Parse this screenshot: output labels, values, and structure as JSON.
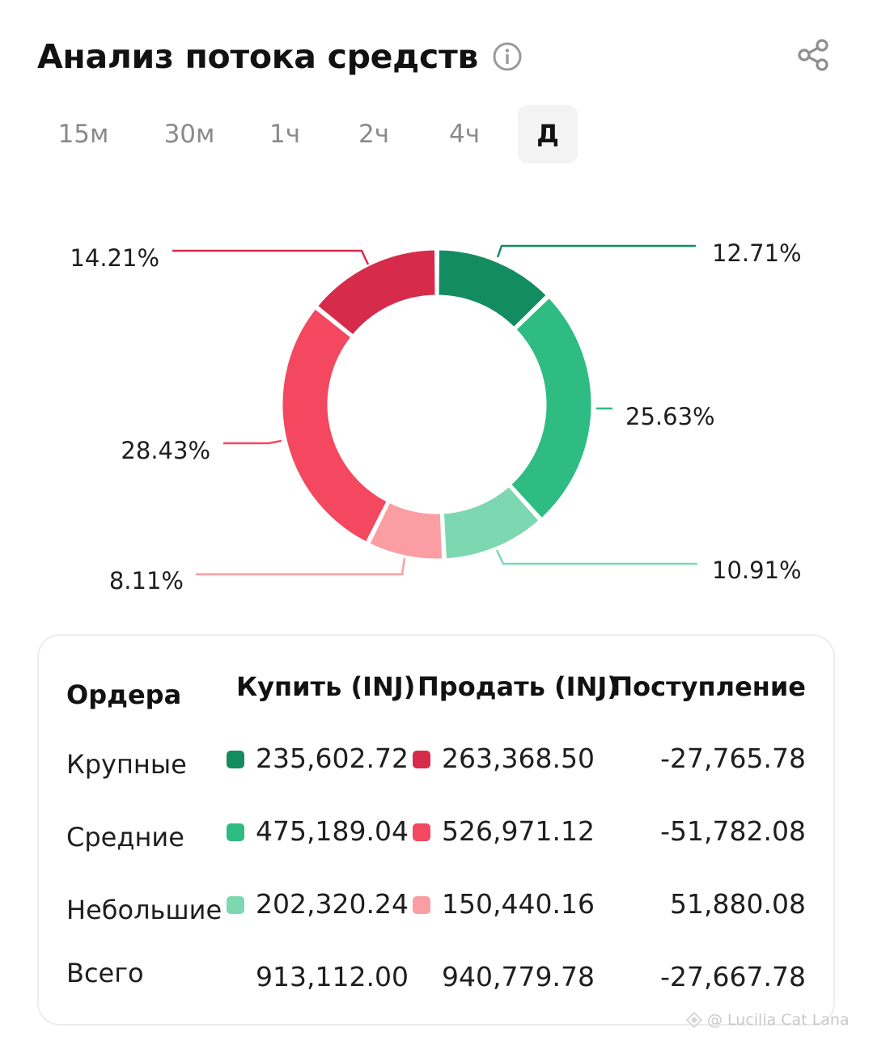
{
  "header": {
    "title": "Анализ потока средств",
    "info_icon": "info-icon",
    "share_icon": "share-icon"
  },
  "tabs": [
    {
      "label": "15м",
      "active": false
    },
    {
      "label": "30м",
      "active": false
    },
    {
      "label": "1ч",
      "active": false
    },
    {
      "label": "2ч",
      "active": false
    },
    {
      "label": "4ч",
      "active": false
    },
    {
      "label": "Д",
      "active": true
    }
  ],
  "colors": {
    "buy_large": "#148c61",
    "buy_medium": "#2ebc83",
    "buy_small": "#7dd8b1",
    "sell_large": "#d62b4a",
    "sell_medium": "#f3485f",
    "sell_small": "#fb9ea3"
  },
  "chart_data": {
    "type": "pie",
    "variant": "donut",
    "slices": [
      {
        "value": 12.71,
        "label": "12.71%",
        "color": "#148c61"
      },
      {
        "value": 25.63,
        "label": "25.63%",
        "color": "#2ebc83"
      },
      {
        "value": 10.91,
        "label": "10.91%",
        "color": "#7dd8b1"
      },
      {
        "value": 8.11,
        "label": "8.11%",
        "color": "#fb9ea3"
      },
      {
        "value": 28.43,
        "label": "28.43%",
        "color": "#f3485f"
      },
      {
        "value": 14.21,
        "label": "14.21%",
        "color": "#d62b4a"
      }
    ]
  },
  "table": {
    "headers": {
      "orders": "Ордера",
      "buy": "Купить (INJ)",
      "sell": "Продать (INJ)",
      "inflow": "Поступление"
    },
    "rows": [
      {
        "name": "Крупные",
        "buy": "235,602.72",
        "sell": "263,368.50",
        "inflow": "-27,765.78",
        "buy_color": "#148c61",
        "sell_color": "#d62b4a"
      },
      {
        "name": "Средние",
        "buy": "475,189.04",
        "sell": "526,971.12",
        "inflow": "-51,782.08",
        "buy_color": "#2ebc83",
        "sell_color": "#f3485f"
      },
      {
        "name": "Небольшие",
        "buy": "202,320.24",
        "sell": "150,440.16",
        "inflow": "51,880.08",
        "buy_color": "#7dd8b1",
        "sell_color": "#fb9ea3"
      }
    ],
    "total": {
      "name": "Всего",
      "buy": "913,112.00",
      "sell": "940,779.78",
      "inflow": "-27,667.78"
    }
  },
  "watermark": "@ Lucilia Cat Lana"
}
